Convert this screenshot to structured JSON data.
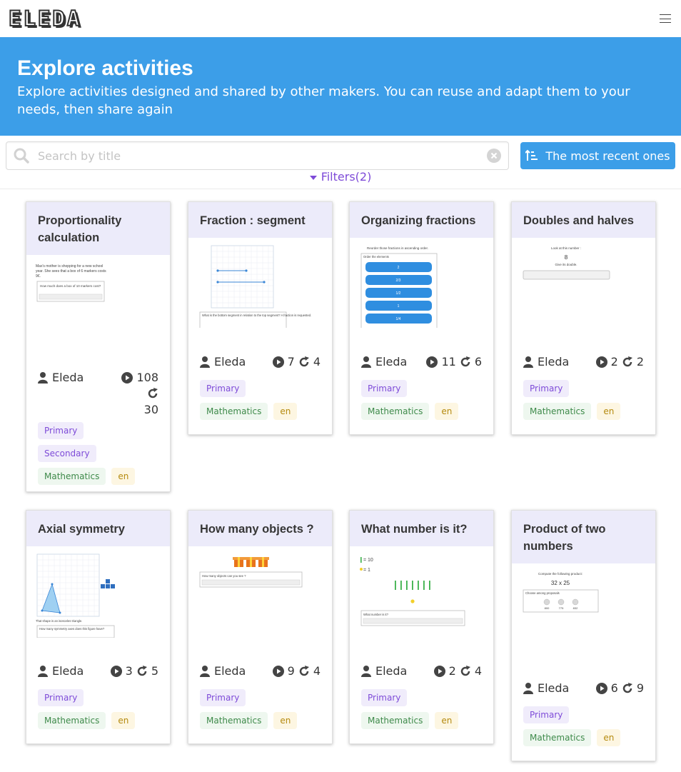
{
  "app": {
    "logo_text": "ELEDA"
  },
  "hero": {
    "title": "Explore activities",
    "subtitle": "Explore activities designed and shared by other makers. You can reuse and adapt them to your needs, then share again"
  },
  "search": {
    "placeholder": "Search by title",
    "value": ""
  },
  "sort": {
    "label": "The most recent ones"
  },
  "filters": {
    "label": "Filters(2)"
  },
  "colors": {
    "accent": "#3c9ee8",
    "purple": "#7e4bd8",
    "title_bg": "#ecebfa"
  },
  "cards": [
    {
      "title": "Proportionality calculation",
      "author": "Eleda",
      "plays": "108",
      "reuses": "30",
      "levels": [
        "Primary",
        "Secondary"
      ],
      "subject": "Mathematics",
      "lang": "en",
      "thumb": {
        "line1": "Max's mother is shopping for a new school",
        "line2": "year. She sees that a box of 6 markers costs",
        "line3": "9€.",
        "question": "How much does a box of 10 markers cost?"
      }
    },
    {
      "title": "Fraction : segment",
      "author": "Eleda",
      "plays": "7",
      "reuses": "4",
      "levels": [
        "Primary"
      ],
      "subject": "Mathematics",
      "lang": "en",
      "thumb": {
        "question": "What is the bottom segment in relation to the top segment? A fraction is requested."
      }
    },
    {
      "title": "Organizing fractions",
      "author": "Eleda",
      "plays": "11",
      "reuses": "6",
      "levels": [
        "Primary"
      ],
      "subject": "Mathematics",
      "lang": "en",
      "thumb": {
        "instruction": "Reorder those fractions in ascending order.",
        "box_label": "Order the elements",
        "items": [
          "2",
          "2/3",
          "1/2",
          "1",
          "1/4"
        ]
      }
    },
    {
      "title": "Doubles and halves",
      "author": "Eleda",
      "plays": "2",
      "reuses": "2",
      "levels": [
        "Primary"
      ],
      "subject": "Mathematics",
      "lang": "en",
      "thumb": {
        "line1": "Look at this number :",
        "number": "8",
        "line2": "Give its double."
      }
    },
    {
      "title": "Axial symmetry",
      "author": "Eleda",
      "plays": "3",
      "reuses": "5",
      "levels": [
        "Primary"
      ],
      "subject": "Mathematics",
      "lang": "en",
      "thumb": {
        "line1": "That shape is an isosceles triangle.",
        "question": "How many symmetry axes does this figure have?"
      }
    },
    {
      "title": "How many objects ?",
      "author": "Eleda",
      "plays": "9",
      "reuses": "4",
      "levels": [
        "Primary"
      ],
      "subject": "Mathematics",
      "lang": "en",
      "thumb": {
        "question": "How many objects can you see ?"
      }
    },
    {
      "title": "What number is it?",
      "author": "Eleda",
      "plays": "2",
      "reuses": "4",
      "levels": [
        "Primary"
      ],
      "subject": "Mathematics",
      "lang": "en",
      "thumb": {
        "legend1": "= 10",
        "legend2": "= 1",
        "question": "What number is it?"
      }
    },
    {
      "title": "Product of two numbers",
      "author": "Eleda",
      "plays": "6",
      "reuses": "9",
      "levels": [
        "Primary"
      ],
      "subject": "Mathematics",
      "lang": "en",
      "thumb": {
        "line1": "Compute the following product:",
        "expr": "32 x 25",
        "box_label": "Choose among proposals",
        "opts": [
          "800",
          "775",
          "832"
        ]
      }
    }
  ]
}
